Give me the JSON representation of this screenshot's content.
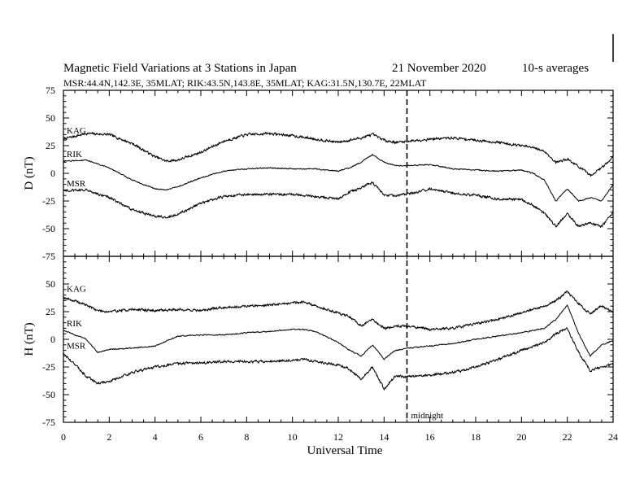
{
  "header": {
    "title": "Magnetic Field Variations at 3 Stations in Japan",
    "date": "21 November 2020",
    "averaging": "10-s averages",
    "stations_line": "MSR:44.4N,142.3E, 35MLAT;  RIK:43.5N,143.8E, 35MLAT;  KAG:31.5N,130.7E, 22MLAT"
  },
  "chart_data": [
    {
      "type": "line",
      "panel": "D",
      "ylabel": "D (nT)",
      "xlabel": "",
      "xlim": [
        0,
        24
      ],
      "ylim": [
        -75,
        75
      ],
      "yticks": [
        75,
        50,
        25,
        0,
        -25,
        -50,
        -75
      ],
      "xticks": [
        0,
        2,
        4,
        6,
        8,
        10,
        12,
        14,
        16,
        18,
        20,
        22,
        24
      ],
      "grid": false,
      "series": [
        {
          "name": "KAG",
          "x": [
            0,
            1,
            2,
            3,
            4,
            4.5,
            5,
            6,
            7,
            8,
            9,
            10,
            11,
            12,
            12.5,
            13,
            13.5,
            14,
            14.5,
            15,
            16,
            17,
            18,
            19,
            20,
            20.5,
            21,
            21.5,
            22,
            22.5,
            23,
            23.5,
            24
          ],
          "y": [
            31,
            36,
            35,
            27,
            15,
            11,
            12,
            19,
            29,
            35,
            36,
            34,
            31,
            28,
            30,
            32,
            35,
            30,
            28,
            29,
            31,
            32,
            30,
            28,
            25,
            23,
            20,
            10,
            13,
            6,
            -2,
            5,
            15
          ]
        },
        {
          "name": "RIK",
          "x": [
            0,
            1,
            2,
            3,
            4,
            4.5,
            5,
            6,
            7,
            8,
            9,
            10,
            11,
            12,
            12.5,
            13,
            13.5,
            14,
            14.5,
            15,
            16,
            17,
            18,
            19,
            20,
            20.5,
            21,
            21.5,
            22,
            22.5,
            23,
            23.5,
            24
          ],
          "y": [
            11,
            12,
            5,
            -6,
            -14,
            -15,
            -12,
            -4,
            2,
            4,
            5,
            4,
            4,
            2,
            5,
            10,
            17,
            10,
            7,
            7,
            8,
            4,
            3,
            2,
            3,
            0,
            -6,
            -25,
            -14,
            -25,
            -22,
            -25,
            -10
          ]
        },
        {
          "name": "MSR",
          "x": [
            0,
            1,
            2,
            3,
            4,
            4.5,
            5,
            6,
            7,
            8,
            9,
            10,
            11,
            12,
            12.5,
            13,
            13.5,
            14,
            14.5,
            15,
            16,
            17,
            18,
            19,
            20,
            20.5,
            21,
            21.5,
            22,
            22.5,
            23,
            23.5,
            24
          ],
          "y": [
            -16,
            -15,
            -22,
            -33,
            -39,
            -40,
            -37,
            -27,
            -21,
            -19,
            -19,
            -19,
            -21,
            -23,
            -17,
            -13,
            -8,
            -20,
            -20,
            -19,
            -14,
            -18,
            -20,
            -23,
            -24,
            -29,
            -36,
            -48,
            -37,
            -48,
            -45,
            -48,
            -35
          ]
        }
      ],
      "annotations": []
    },
    {
      "type": "line",
      "panel": "H",
      "ylabel": "H (nT)",
      "xlabel": "Universal Time",
      "xlim": [
        0,
        24
      ],
      "ylim": [
        -75,
        75
      ],
      "yticks": [
        75,
        50,
        25,
        0,
        -25,
        -50,
        -75
      ],
      "xticks": [
        0,
        2,
        4,
        6,
        8,
        10,
        12,
        14,
        16,
        18,
        20,
        22,
        24
      ],
      "grid": false,
      "series": [
        {
          "name": "KAG",
          "x": [
            0,
            1,
            1.5,
            2,
            3,
            4,
            5,
            6,
            7,
            8,
            9,
            10,
            10.5,
            11,
            12,
            12.5,
            13,
            13.5,
            14,
            14.5,
            15,
            16,
            17,
            18,
            19,
            20,
            21,
            21.5,
            22,
            22.5,
            23,
            23.5,
            24
          ],
          "y": [
            38,
            31,
            26,
            25,
            27,
            26,
            27,
            26,
            29,
            30,
            31,
            33,
            34,
            30,
            24,
            20,
            12,
            18,
            10,
            12,
            12,
            9,
            10,
            14,
            18,
            24,
            30,
            35,
            43,
            32,
            23,
            30,
            24
          ]
        },
        {
          "name": "RIK",
          "x": [
            0,
            1,
            1.5,
            2,
            3,
            4,
            5,
            6,
            7,
            8,
            9,
            10,
            10.5,
            11,
            12,
            12.5,
            13,
            13.5,
            14,
            14.5,
            15,
            16,
            17,
            18,
            19,
            20,
            21,
            21.5,
            22,
            22.5,
            23,
            23.5,
            24
          ],
          "y": [
            8,
            0,
            -12,
            -9,
            -8,
            -6,
            3,
            4,
            4,
            6,
            7,
            9,
            9,
            7,
            -3,
            -10,
            -15,
            -5,
            -18,
            -10,
            -8,
            -6,
            -4,
            0,
            3,
            6,
            10,
            18,
            31,
            5,
            -15,
            -5,
            -1
          ]
        },
        {
          "name": "MSR",
          "x": [
            0,
            1,
            1.5,
            2,
            3,
            4,
            5,
            6,
            7,
            8,
            9,
            10,
            10.5,
            11,
            12,
            12.5,
            13,
            13.5,
            14,
            14.5,
            15,
            16,
            17,
            18,
            19,
            20,
            21,
            21.5,
            22,
            22.5,
            23,
            23.5,
            24
          ],
          "y": [
            -13,
            -33,
            -40,
            -38,
            -30,
            -25,
            -22,
            -21,
            -20,
            -20,
            -20,
            -19,
            -18,
            -20,
            -23,
            -27,
            -36,
            -25,
            -45,
            -33,
            -34,
            -32,
            -30,
            -25,
            -18,
            -10,
            -3,
            5,
            10,
            -12,
            -28,
            -25,
            -22
          ]
        }
      ],
      "annotations": [
        {
          "label": "midnight",
          "x": 15
        }
      ]
    }
  ],
  "axes": {
    "xtick_labels": [
      "0",
      "2",
      "4",
      "6",
      "8",
      "10",
      "12",
      "14",
      "16",
      "18",
      "20",
      "22",
      "24"
    ],
    "ytick_labels": [
      "75",
      "50",
      "25",
      "0",
      "-25",
      "-50",
      "-75"
    ]
  }
}
